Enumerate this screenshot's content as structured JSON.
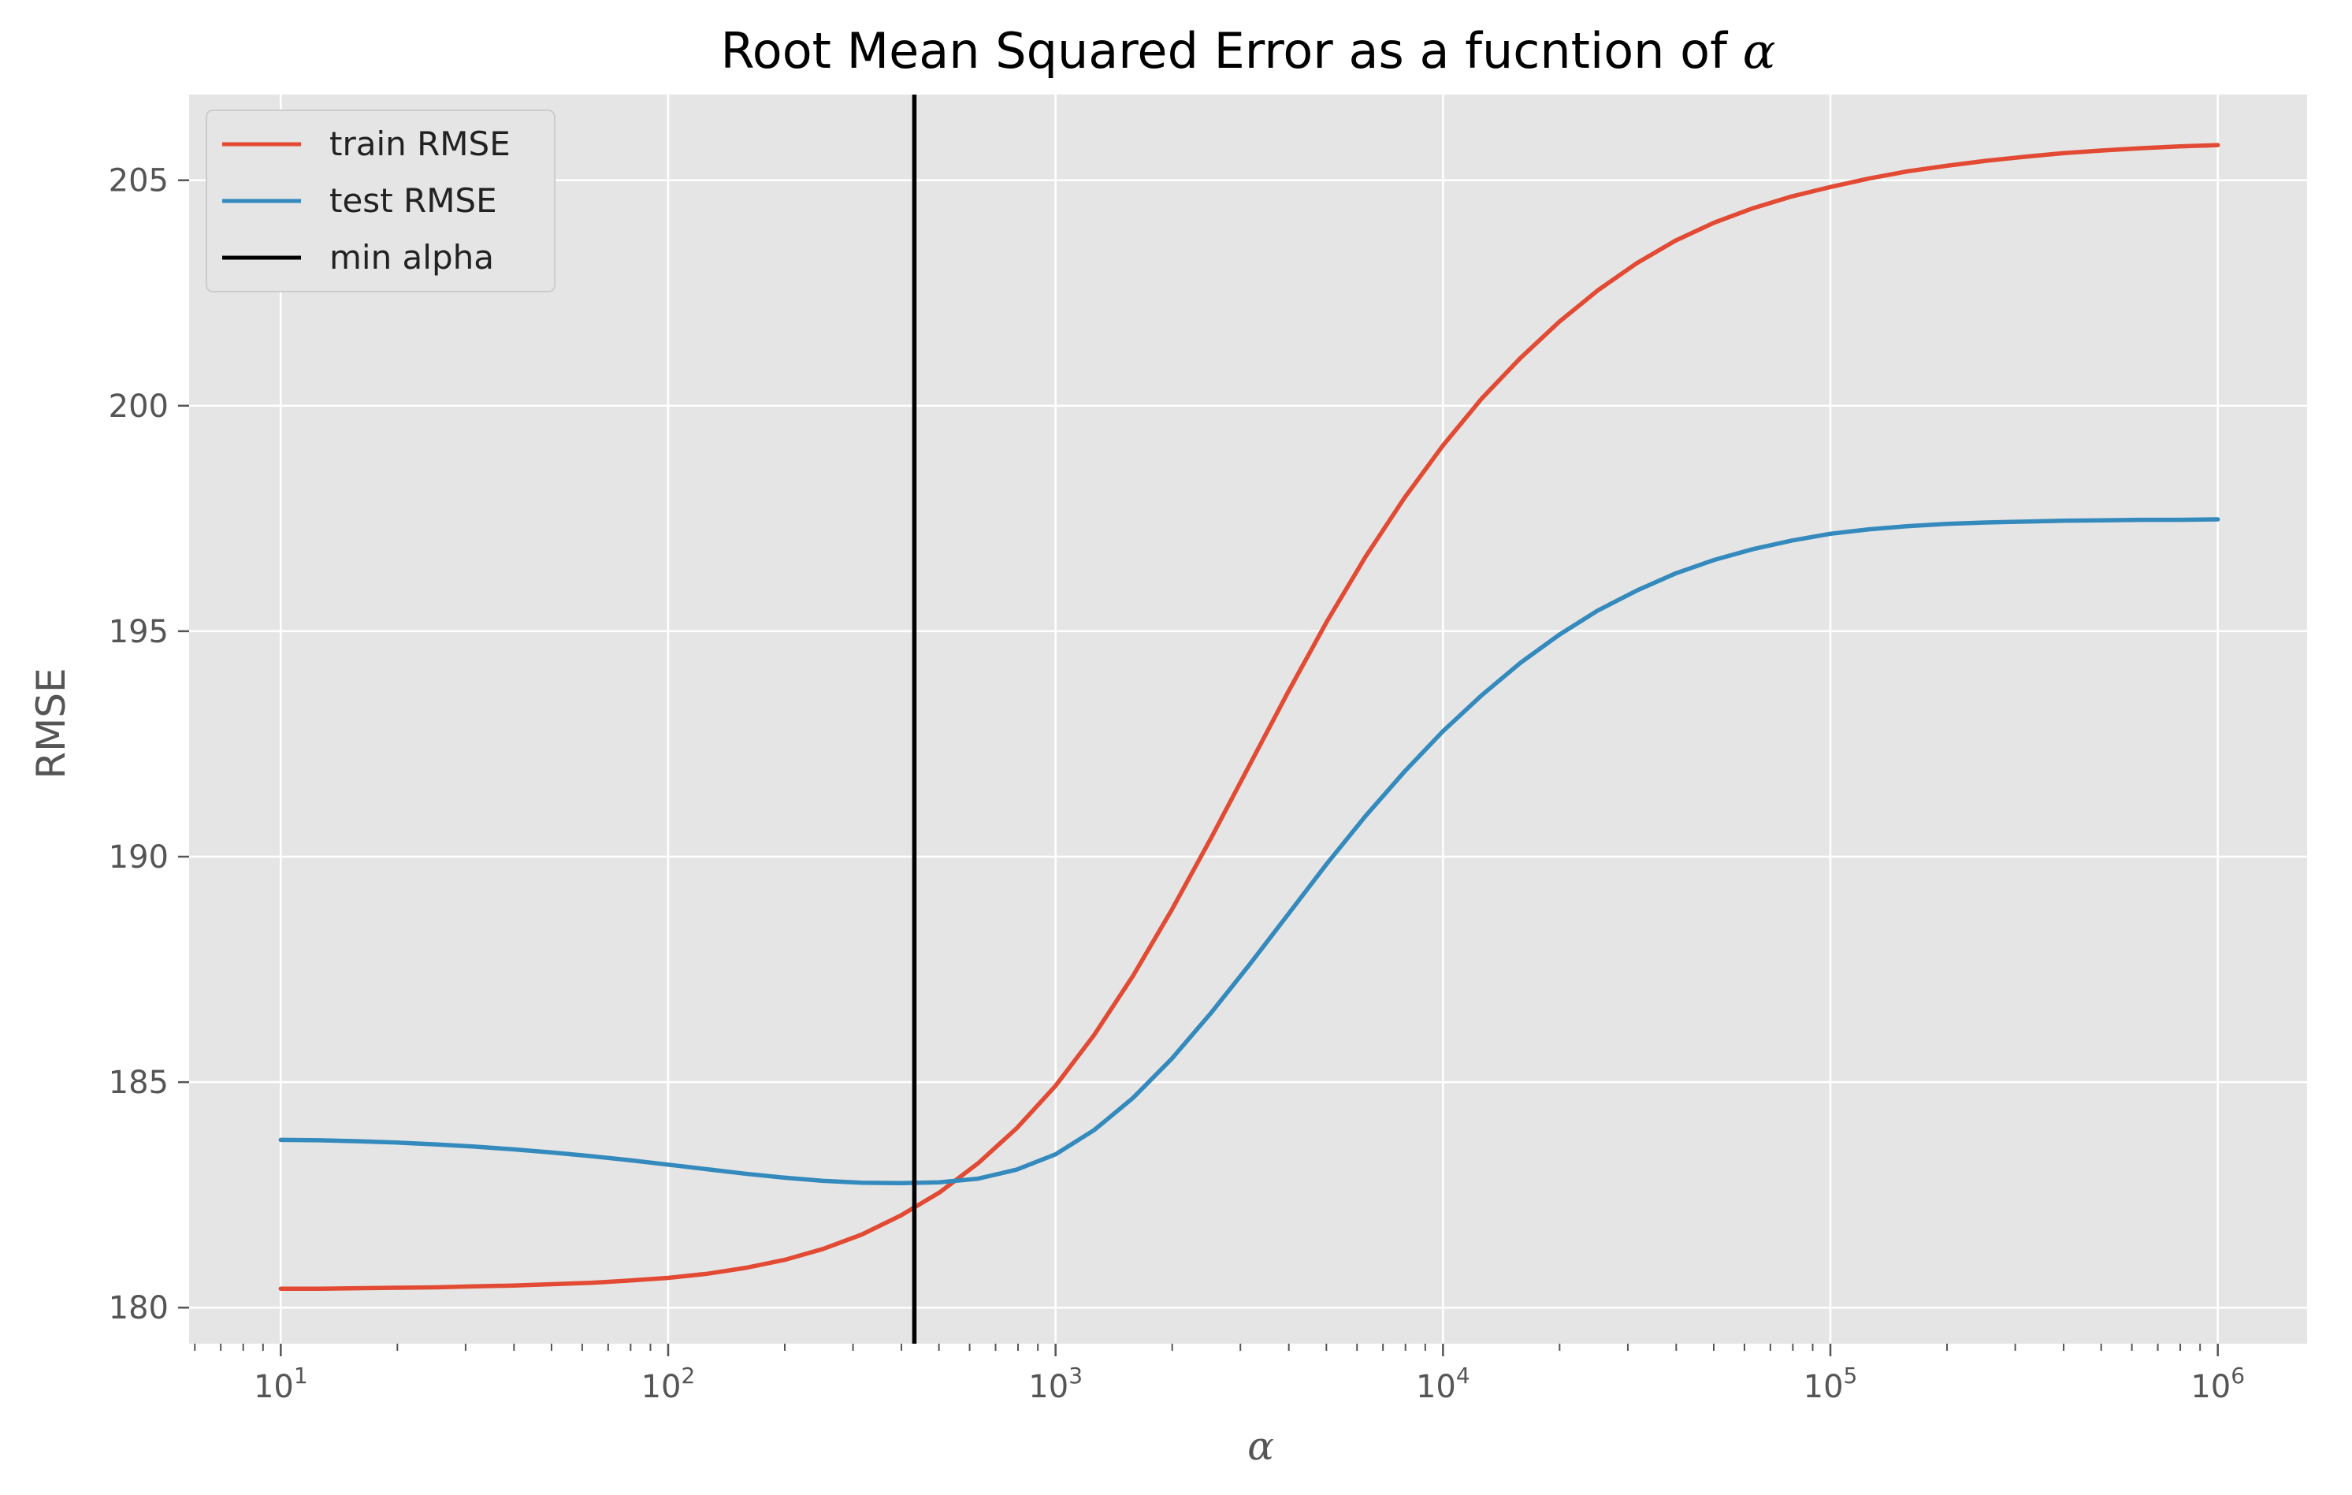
{
  "chart_data": {
    "type": "line",
    "title_prefix": "Root Mean Squared Error as a fucntion of ",
    "title_symbol": "α",
    "xlabel": "α",
    "ylabel": "RMSE",
    "xscale": "log",
    "xlim": [
      5.8,
      1700000
    ],
    "ylim": [
      179.2,
      206.9
    ],
    "x_tick_base": "10",
    "x_tick_exponents": [
      "1",
      "2",
      "3",
      "4",
      "5",
      "6"
    ],
    "y_ticks": [
      180,
      185,
      190,
      195,
      200,
      205
    ],
    "y_tick_labels": [
      "180",
      "185",
      "190",
      "195",
      "200",
      "205"
    ],
    "grid": true,
    "background": "#e5e5e5",
    "grid_color": "#ffffff",
    "legend_position": "top-left",
    "series": [
      {
        "name": "train RMSE",
        "color": "#e24a33",
        "x": [
          10,
          12.6,
          15.8,
          20,
          25.1,
          31.6,
          39.8,
          50.1,
          63.1,
          79.4,
          100,
          126,
          158,
          200,
          251,
          316,
          398,
          501,
          631,
          794,
          1000,
          1259,
          1585,
          1995,
          2512,
          3162,
          3981,
          5012,
          6310,
          7943,
          10000,
          12589,
          15849,
          19953,
          25119,
          31623,
          39811,
          50119,
          63096,
          79433,
          100000,
          125893,
          158489,
          199526,
          251189,
          316228,
          398107,
          501187,
          630957,
          794328,
          1000000
        ],
        "y": [
          180.42,
          180.42,
          180.43,
          180.44,
          180.45,
          180.47,
          180.49,
          180.52,
          180.55,
          180.6,
          180.66,
          180.75,
          180.88,
          181.06,
          181.3,
          181.62,
          182.04,
          182.55,
          183.2,
          183.98,
          184.92,
          186.05,
          187.36,
          188.82,
          190.39,
          192.02,
          193.65,
          195.21,
          196.65,
          197.95,
          199.12,
          200.16,
          201.06,
          201.86,
          202.56,
          203.16,
          203.66,
          204.06,
          204.38,
          204.64,
          204.85,
          205.04,
          205.2,
          205.32,
          205.43,
          205.52,
          205.6,
          205.66,
          205.71,
          205.75,
          205.78
        ]
      },
      {
        "name": "test RMSE",
        "color": "#348abd",
        "x": [
          10,
          12.6,
          15.8,
          20,
          25.1,
          31.6,
          39.8,
          50.1,
          63.1,
          79.4,
          100,
          126,
          158,
          200,
          251,
          316,
          398,
          501,
          631,
          794,
          1000,
          1259,
          1585,
          1995,
          2512,
          3162,
          3981,
          5012,
          6310,
          7943,
          10000,
          12589,
          15849,
          19953,
          25119,
          31623,
          39811,
          50119,
          63096,
          79433,
          100000,
          125893,
          158489,
          199526,
          251189,
          316228,
          398107,
          501187,
          630957,
          794328,
          1000000
        ],
        "y": [
          183.72,
          183.71,
          183.69,
          183.66,
          183.62,
          183.57,
          183.51,
          183.44,
          183.36,
          183.27,
          183.17,
          183.07,
          182.97,
          182.88,
          182.81,
          182.77,
          182.76,
          182.78,
          182.86,
          183.06,
          183.4,
          183.94,
          184.65,
          185.52,
          186.52,
          187.6,
          188.72,
          189.84,
          190.9,
          191.88,
          192.78,
          193.58,
          194.3,
          194.92,
          195.46,
          195.9,
          196.28,
          196.58,
          196.82,
          197.01,
          197.16,
          197.26,
          197.33,
          197.38,
          197.41,
          197.43,
          197.45,
          197.46,
          197.47,
          197.47,
          197.48
        ]
      }
    ],
    "vline": {
      "name": "min alpha",
      "x": 432,
      "color": "#000000"
    }
  }
}
